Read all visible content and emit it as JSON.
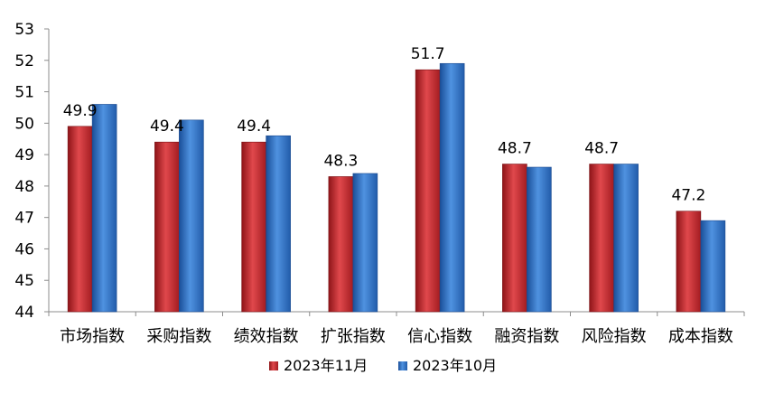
{
  "chart_data": {
    "type": "bar",
    "categories": [
      "市场指数",
      "采购指数",
      "绩效指数",
      "扩张指数",
      "信心指数",
      "融资指数",
      "风险指数",
      "成本指数"
    ],
    "series": [
      {
        "name": "2023年11月",
        "values": [
          49.9,
          49.4,
          49.4,
          48.3,
          51.7,
          48.7,
          48.7,
          47.2
        ],
        "color": "#c0282d",
        "show_labels": true
      },
      {
        "name": "2023年10月",
        "values": [
          50.6,
          50.1,
          49.6,
          48.4,
          51.9,
          48.6,
          48.7,
          46.9
        ],
        "color": "#2f6fc1",
        "show_labels": false
      }
    ],
    "ylim": [
      44,
      53
    ],
    "yticks": [
      44,
      45,
      46,
      47,
      48,
      49,
      50,
      51,
      52,
      53
    ],
    "title": "",
    "xlabel": "",
    "ylabel": "",
    "grid": false,
    "legend_position": "bottom"
  }
}
